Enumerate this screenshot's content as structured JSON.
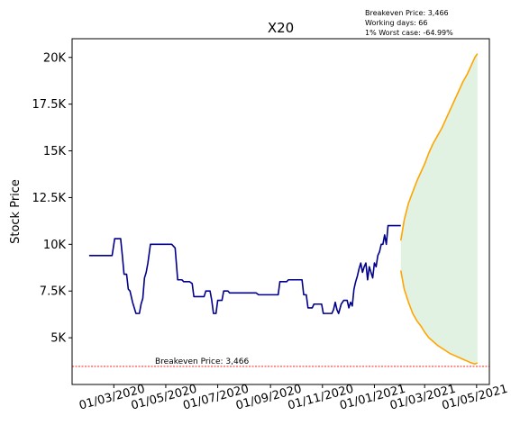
{
  "chart_data": {
    "type": "line",
    "title": "X20",
    "xlabel": "",
    "ylabel": "Stock Price",
    "x_tick_labels": [
      "01/03/2020",
      "01/05/2020",
      "01/07/2020",
      "01/09/2020",
      "01/11/2020",
      "01/01/2021",
      "01/03/2021",
      "01/05/2021"
    ],
    "x_tick_dates": [
      "2020-03-01",
      "2020-05-01",
      "2020-07-01",
      "2020-09-01",
      "2020-11-01",
      "2021-01-01",
      "2021-03-01",
      "2021-05-01"
    ],
    "y_ticks": [
      5000,
      7500,
      10000,
      12500,
      15000,
      17500,
      20000
    ],
    "y_tick_labels": [
      "5K",
      "7.5K",
      "10K",
      "12.5K",
      "15K",
      "17.5K",
      "20K"
    ],
    "xlim": [
      "2020-01-12",
      "2021-05-16"
    ],
    "ylim": [
      2500,
      21000
    ],
    "grid": false,
    "annotations": {
      "lines": [
        "Breakeven Price: 3,466",
        "Working days: 66",
        "1% Worst case: -64.99%"
      ],
      "breakeven_label": "Breakeven Price: 3,466"
    },
    "breakeven_price": 3466,
    "colors": {
      "history": "#00008b",
      "projection": "#ffa500",
      "band_fill": "#e2f2e2",
      "breakeven": "#ff0000"
    },
    "series": [
      {
        "values": [
          [
            "2020-02-01",
            9400
          ],
          [
            "2020-02-28",
            9400
          ],
          [
            "2020-03-02",
            10300
          ],
          [
            "2020-03-09",
            10300
          ],
          [
            "2020-03-11",
            9400
          ],
          [
            "2020-03-13",
            8400
          ],
          [
            "2020-03-16",
            8400
          ],
          [
            "2020-03-18",
            7600
          ],
          [
            "2020-03-20",
            7500
          ],
          [
            "2020-03-23",
            6900
          ],
          [
            "2020-03-25",
            6600
          ],
          [
            "2020-03-27",
            6300
          ],
          [
            "2020-03-31",
            6300
          ],
          [
            "2020-04-02",
            6800
          ],
          [
            "2020-04-04",
            7100
          ],
          [
            "2020-04-06",
            8200
          ],
          [
            "2020-04-08",
            8500
          ],
          [
            "2020-04-10",
            9000
          ],
          [
            "2020-04-13",
            10000
          ],
          [
            "2020-04-30",
            10000
          ],
          [
            "2020-05-08",
            10000
          ],
          [
            "2020-05-12",
            9800
          ],
          [
            "2020-05-15",
            8100
          ],
          [
            "2020-05-20",
            8100
          ],
          [
            "2020-05-22",
            8000
          ],
          [
            "2020-05-29",
            8000
          ],
          [
            "2020-06-01",
            7900
          ],
          [
            "2020-06-03",
            7200
          ],
          [
            "2020-06-15",
            7200
          ],
          [
            "2020-06-17",
            7500
          ],
          [
            "2020-06-22",
            7500
          ],
          [
            "2020-06-24",
            7000
          ],
          [
            "2020-06-26",
            6300
          ],
          [
            "2020-06-29",
            6300
          ],
          [
            "2020-07-01",
            7000
          ],
          [
            "2020-07-06",
            7000
          ],
          [
            "2020-07-08",
            7500
          ],
          [
            "2020-07-13",
            7500
          ],
          [
            "2020-07-15",
            7400
          ],
          [
            "2020-08-15",
            7400
          ],
          [
            "2020-08-18",
            7300
          ],
          [
            "2020-09-10",
            7300
          ],
          [
            "2020-09-12",
            8000
          ],
          [
            "2020-09-20",
            8000
          ],
          [
            "2020-09-22",
            8100
          ],
          [
            "2020-10-08",
            8100
          ],
          [
            "2020-10-10",
            7300
          ],
          [
            "2020-10-13",
            7300
          ],
          [
            "2020-10-15",
            6600
          ],
          [
            "2020-10-20",
            6600
          ],
          [
            "2020-10-22",
            6800
          ],
          [
            "2020-10-31",
            6800
          ],
          [
            "2020-11-02",
            6300
          ],
          [
            "2020-11-12",
            6300
          ],
          [
            "2020-11-14",
            6500
          ],
          [
            "2020-11-16",
            6900
          ],
          [
            "2020-11-18",
            6500
          ],
          [
            "2020-11-20",
            6300
          ],
          [
            "2020-11-23",
            6800
          ],
          [
            "2020-11-26",
            7000
          ],
          [
            "2020-11-30",
            7000
          ],
          [
            "2020-12-02",
            6600
          ],
          [
            "2020-12-04",
            6900
          ],
          [
            "2020-12-06",
            6700
          ],
          [
            "2020-12-08",
            7600
          ],
          [
            "2020-12-10",
            8000
          ],
          [
            "2020-12-12",
            8300
          ],
          [
            "2020-12-14",
            8700
          ],
          [
            "2020-12-16",
            9000
          ],
          [
            "2020-12-18",
            8500
          ],
          [
            "2020-12-20",
            8800
          ],
          [
            "2020-12-22",
            9000
          ],
          [
            "2020-12-24",
            8100
          ],
          [
            "2020-12-26",
            8800
          ],
          [
            "2020-12-28",
            8500
          ],
          [
            "2020-12-30",
            8200
          ],
          [
            "2021-01-01",
            9000
          ],
          [
            "2021-01-03",
            8800
          ],
          [
            "2021-01-05",
            9400
          ],
          [
            "2021-01-07",
            9600
          ],
          [
            "2021-01-09",
            10000
          ],
          [
            "2021-01-11",
            10000
          ],
          [
            "2021-01-13",
            10500
          ],
          [
            "2021-01-15",
            10000
          ],
          [
            "2021-01-17",
            11000
          ],
          [
            "2021-02-01",
            11000
          ]
        ]
      },
      {
        "values": [
          [
            "2021-02-01",
            10200
          ],
          [
            "2021-02-05",
            11300
          ],
          [
            "2021-02-10",
            12200
          ],
          [
            "2021-02-15",
            12800
          ],
          [
            "2021-02-20",
            13400
          ],
          [
            "2021-02-25",
            13900
          ],
          [
            "2021-03-01",
            14300
          ],
          [
            "2021-03-06",
            14900
          ],
          [
            "2021-03-11",
            15400
          ],
          [
            "2021-03-16",
            15800
          ],
          [
            "2021-03-21",
            16200
          ],
          [
            "2021-03-26",
            16700
          ],
          [
            "2021-03-31",
            17200
          ],
          [
            "2021-04-05",
            17700
          ],
          [
            "2021-04-10",
            18200
          ],
          [
            "2021-04-15",
            18700
          ],
          [
            "2021-04-20",
            19100
          ],
          [
            "2021-04-25",
            19600
          ],
          [
            "2021-04-29",
            20000
          ],
          [
            "2021-05-02",
            20200
          ]
        ]
      },
      {
        "values": [
          [
            "2021-02-01",
            8600
          ],
          [
            "2021-02-05",
            7600
          ],
          [
            "2021-02-10",
            6900
          ],
          [
            "2021-02-15",
            6300
          ],
          [
            "2021-02-20",
            5900
          ],
          [
            "2021-02-25",
            5600
          ],
          [
            "2021-03-01",
            5300
          ],
          [
            "2021-03-06",
            5000
          ],
          [
            "2021-03-11",
            4800
          ],
          [
            "2021-03-16",
            4600
          ],
          [
            "2021-03-21",
            4450
          ],
          [
            "2021-03-26",
            4300
          ],
          [
            "2021-03-31",
            4150
          ],
          [
            "2021-04-05",
            4050
          ],
          [
            "2021-04-10",
            3950
          ],
          [
            "2021-04-15",
            3850
          ],
          [
            "2021-04-20",
            3750
          ],
          [
            "2021-04-25",
            3650
          ],
          [
            "2021-04-29",
            3600
          ],
          [
            "2021-05-02",
            3650
          ]
        ]
      }
    ]
  }
}
